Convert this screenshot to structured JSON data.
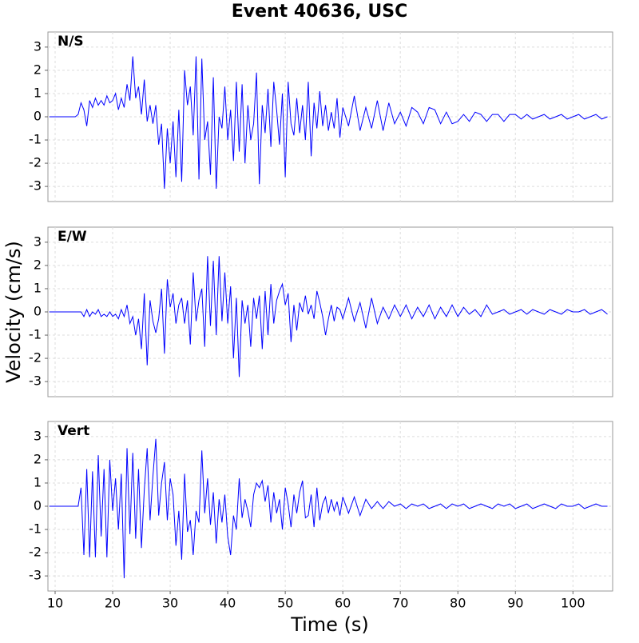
{
  "chart_data": {
    "type": "line",
    "title": "Event 40636, USC",
    "x_label": "Time (s)",
    "y_label": "Velocity (cm/s)",
    "x": [
      9,
      13,
      13.5,
      14,
      14.5,
      15,
      15.5,
      16,
      16.5,
      17,
      17.5,
      18,
      18.5,
      19,
      19.5,
      20,
      20.5,
      21,
      21.5,
      22,
      22.5,
      23,
      23.5,
      24,
      24.5,
      25,
      25.5,
      26,
      26.5,
      27,
      27.5,
      28,
      28.5,
      29,
      29.5,
      30,
      30.5,
      31,
      31.5,
      32,
      32.5,
      33,
      33.5,
      34,
      34.5,
      35,
      35.5,
      36,
      36.5,
      37,
      37.5,
      38,
      38.5,
      39,
      39.5,
      40,
      40.5,
      41,
      41.5,
      42,
      42.5,
      43,
      43.5,
      44,
      44.5,
      45,
      45.5,
      46,
      46.5,
      47,
      47.5,
      48,
      48.5,
      49,
      49.5,
      50,
      50.5,
      51,
      51.5,
      52,
      52.5,
      53,
      53.5,
      54,
      54.5,
      55,
      55.5,
      56,
      56.5,
      57,
      57.5,
      58,
      58.5,
      59,
      59.5,
      60,
      61,
      62,
      63,
      64,
      65,
      66,
      67,
      68,
      69,
      70,
      71,
      72,
      73,
      74,
      75,
      76,
      77,
      78,
      79,
      80,
      81,
      82,
      83,
      84,
      85,
      86,
      87,
      88,
      89,
      90,
      91,
      92,
      93,
      94,
      95,
      96,
      97,
      98,
      99,
      100,
      101,
      102,
      103,
      104,
      105,
      106
    ],
    "series": [
      {
        "name": "N/S",
        "color": "#0000ff",
        "values": [
          0,
          0,
          0,
          0.1,
          0.6,
          0.3,
          -0.4,
          0.7,
          0.4,
          0.8,
          0.5,
          0.7,
          0.5,
          0.9,
          0.6,
          0.7,
          1.0,
          0.3,
          0.8,
          0.4,
          1.4,
          0.7,
          2.6,
          0.8,
          1.3,
          0.1,
          1.6,
          -0.2,
          0.5,
          -0.3,
          0.5,
          -1.2,
          -0.3,
          -3.1,
          -0.5,
          -2.0,
          -0.2,
          -2.6,
          0.3,
          -2.8,
          2.0,
          0.5,
          1.3,
          -0.8,
          2.6,
          -2.7,
          2.5,
          -1.0,
          -0.2,
          -2.5,
          1.7,
          -3.1,
          0.0,
          -0.5,
          1.3,
          -1.0,
          0.3,
          -1.9,
          1.5,
          -1.5,
          1.4,
          -2.0,
          0.5,
          -1.0,
          -0.3,
          1.9,
          -2.9,
          0.5,
          -0.7,
          1.2,
          -1.3,
          1.5,
          0.3,
          -1.2,
          1.0,
          -2.6,
          1.5,
          -0.3,
          -0.8,
          0.8,
          -0.7,
          0.5,
          -1.0,
          1.5,
          -1.7,
          0.6,
          -0.5,
          1.1,
          -0.4,
          0.5,
          -0.6,
          0.2,
          -0.5,
          0.8,
          -0.9,
          0.4,
          -0.4,
          0.9,
          -0.6,
          0.4,
          -0.5,
          0.7,
          -0.6,
          0.6,
          -0.3,
          0.2,
          -0.4,
          0.4,
          0.2,
          -0.3,
          0.4,
          0.3,
          -0.3,
          0.2,
          -0.3,
          -0.2,
          0.1,
          -0.2,
          0.2,
          0.1,
          -0.2,
          0.1,
          0.1,
          -0.2,
          0.1,
          0.1,
          -0.1,
          0.1,
          -0.1,
          0.0,
          0.1,
          -0.1,
          0.0,
          0.1,
          -0.1,
          0.0,
          0.1,
          -0.1,
          0.0,
          0.1,
          -0.1,
          0.0
        ]
      },
      {
        "name": "E/W",
        "color": "#0000ff",
        "values": [
          0,
          0,
          0,
          0,
          0,
          -0.2,
          0.1,
          -0.2,
          0.0,
          -0.1,
          0.1,
          -0.2,
          -0.1,
          -0.2,
          0.0,
          -0.2,
          -0.1,
          -0.3,
          0.1,
          -0.2,
          0.3,
          -0.5,
          -0.2,
          -1.0,
          -0.3,
          -1.6,
          0.8,
          -2.3,
          0.5,
          -0.4,
          -0.9,
          -0.3,
          1.0,
          -1.8,
          1.4,
          0.2,
          0.8,
          -0.5,
          0.3,
          0.6,
          -0.5,
          0.5,
          -1.4,
          1.7,
          -0.4,
          0.5,
          1.0,
          -1.5,
          2.4,
          -0.6,
          2.2,
          -1.0,
          2.4,
          -0.4,
          1.7,
          -0.5,
          1.1,
          -2.0,
          0.6,
          -2.8,
          0.5,
          -0.5,
          0.3,
          -1.5,
          0.6,
          -0.3,
          0.7,
          -1.6,
          0.9,
          -1.0,
          1.2,
          -0.5,
          0.5,
          0.9,
          1.2,
          0.3,
          0.8,
          -1.3,
          0.3,
          -0.8,
          0.4,
          0.0,
          0.7,
          -0.1,
          0.3,
          -0.3,
          0.9,
          0.4,
          -0.2,
          -1.0,
          -0.3,
          0.3,
          -0.4,
          0.2,
          0.1,
          -0.3,
          0.6,
          -0.4,
          0.4,
          -0.7,
          0.6,
          -0.5,
          0.2,
          -0.3,
          0.3,
          -0.2,
          0.3,
          -0.3,
          0.2,
          -0.2,
          0.3,
          -0.3,
          0.2,
          -0.2,
          0.3,
          -0.2,
          0.2,
          -0.1,
          0.1,
          -0.2,
          0.3,
          -0.1,
          0.0,
          0.1,
          -0.1,
          0.0,
          0.1,
          -0.1,
          0.1,
          0.0,
          -0.1,
          0.1,
          0.0,
          -0.1,
          0.1,
          0.0,
          0.0,
          0.1,
          -0.1,
          0.0,
          0.1,
          -0.1
        ]
      },
      {
        "name": "Vert",
        "color": "#0000ff",
        "values": [
          0,
          0,
          0,
          0,
          0.8,
          -2.1,
          1.6,
          -2.2,
          1.5,
          -2.2,
          2.2,
          -1.3,
          1.6,
          -2.2,
          2.0,
          -0.2,
          1.2,
          -1.0,
          1.4,
          -3.1,
          2.5,
          -1.2,
          2.3,
          -1.4,
          1.6,
          -1.8,
          0.7,
          2.5,
          -0.6,
          1.3,
          2.9,
          -0.4,
          1.0,
          1.9,
          -0.6,
          1.2,
          0.5,
          -1.7,
          -0.2,
          -2.3,
          1.4,
          -1.1,
          -0.6,
          -2.1,
          -0.2,
          -0.7,
          2.4,
          -0.3,
          1.2,
          -0.8,
          0.6,
          -1.6,
          0.3,
          -0.7,
          0.5,
          -1.3,
          -2.1,
          -0.4,
          -1.0,
          1.2,
          -0.5,
          0.3,
          -0.2,
          -0.9,
          0.5,
          1.0,
          0.8,
          1.1,
          0.2,
          0.9,
          -0.7,
          0.6,
          -0.3,
          0.3,
          -1.0,
          0.8,
          0.1,
          -0.9,
          0.5,
          -0.3,
          0.6,
          1.1,
          -0.5,
          -0.4,
          0.5,
          -0.9,
          0.8,
          -0.6,
          0.1,
          0.4,
          -0.3,
          0.3,
          -0.2,
          0.2,
          -0.4,
          0.4,
          -0.3,
          0.4,
          -0.4,
          0.3,
          -0.1,
          0.2,
          -0.1,
          0.2,
          0.0,
          0.1,
          -0.1,
          0.1,
          0.0,
          0.1,
          -0.1,
          0.0,
          0.1,
          -0.1,
          0.1,
          0.0,
          0.1,
          -0.1,
          0.0,
          0.1,
          0.0,
          -0.1,
          0.1,
          0.0,
          0.1,
          -0.1,
          0.0,
          0.1,
          -0.1,
          0.0,
          0.1,
          0.0,
          -0.1,
          0.1,
          0.0,
          0.0,
          0.1,
          -0.1,
          0.0,
          0.1,
          0.0,
          0.0
        ]
      }
    ],
    "xlim": [
      8.75,
      106.9
    ],
    "ylim": [
      -3.65,
      3.65
    ],
    "xticks": [
      10,
      20,
      30,
      40,
      50,
      60,
      70,
      80,
      90,
      100
    ],
    "yticks": [
      -3,
      -2,
      -1,
      0,
      1,
      2,
      3
    ],
    "grid": true
  }
}
